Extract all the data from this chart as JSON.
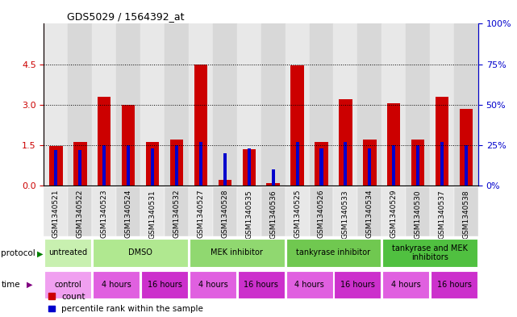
{
  "title": "GDS5029 / 1564392_at",
  "samples": [
    "GSM1340521",
    "GSM1340522",
    "GSM1340523",
    "GSM1340524",
    "GSM1340531",
    "GSM1340532",
    "GSM1340527",
    "GSM1340528",
    "GSM1340535",
    "GSM1340536",
    "GSM1340525",
    "GSM1340526",
    "GSM1340533",
    "GSM1340534",
    "GSM1340529",
    "GSM1340530",
    "GSM1340537",
    "GSM1340538"
  ],
  "red_values": [
    1.45,
    1.6,
    3.3,
    3.0,
    1.6,
    1.7,
    4.5,
    0.22,
    1.35,
    0.08,
    4.47,
    1.6,
    3.2,
    1.7,
    3.05,
    1.7,
    3.3,
    2.85
  ],
  "blue_percentile": [
    22,
    22,
    25,
    25,
    23,
    25,
    27,
    20,
    23,
    10,
    27,
    23,
    27,
    23,
    25,
    25,
    27,
    25
  ],
  "ylim_left": [
    0,
    6
  ],
  "ylim_right": [
    0,
    100
  ],
  "yticks_left": [
    0,
    1.5,
    3.0,
    4.5
  ],
  "yticks_right": [
    0,
    25,
    50,
    75,
    100
  ],
  "red_color": "#cc0000",
  "blue_color": "#0000cc",
  "col_bg_even": "#e8e8e8",
  "col_bg_odd": "#d8d8d8",
  "protocol_groups": [
    {
      "label": "untreated",
      "span": 2,
      "color": "#c8f0b0"
    },
    {
      "label": "DMSO",
      "span": 4,
      "color": "#b0e890"
    },
    {
      "label": "MEK inhibitor",
      "span": 4,
      "color": "#90d870"
    },
    {
      "label": "tankyrase inhibitor",
      "span": 4,
      "color": "#70c850"
    },
    {
      "label": "tankyrase and MEK\ninhibitors",
      "span": 4,
      "color": "#50c040"
    }
  ],
  "time_groups": [
    {
      "label": "control",
      "span": 2,
      "color": "#f0a0f0"
    },
    {
      "label": "4 hours",
      "span": 2,
      "color": "#e060e0"
    },
    {
      "label": "16 hours",
      "span": 2,
      "color": "#cc30cc"
    },
    {
      "label": "4 hours",
      "span": 2,
      "color": "#e060e0"
    },
    {
      "label": "16 hours",
      "span": 2,
      "color": "#cc30cc"
    },
    {
      "label": "4 hours",
      "span": 2,
      "color": "#e060e0"
    },
    {
      "label": "16 hours",
      "span": 2,
      "color": "#cc30cc"
    },
    {
      "label": "4 hours",
      "span": 2,
      "color": "#e060e0"
    },
    {
      "label": "16 hours",
      "span": 2,
      "color": "#cc30cc"
    }
  ]
}
